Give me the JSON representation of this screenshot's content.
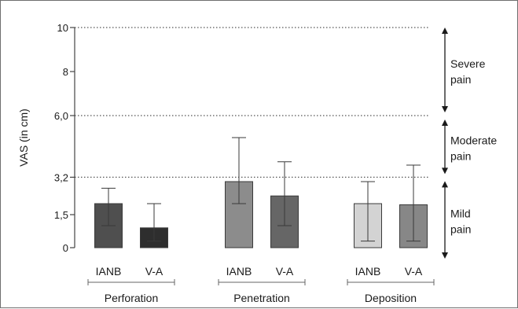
{
  "chart_data": {
    "type": "bar",
    "ylabel": "VAS (in cm)",
    "ylim": [
      0,
      10
    ],
    "grid": "dotted lines at 3.2, 6.0 and 10",
    "legend": "none",
    "yticks": [
      {
        "value": 0,
        "label": "0"
      },
      {
        "value": 1.5,
        "label": "1,5"
      },
      {
        "value": 3.2,
        "label": "3,2"
      },
      {
        "value": 6.0,
        "label": "6,0"
      },
      {
        "value": 8,
        "label": "8"
      },
      {
        "value": 10,
        "label": "10"
      }
    ],
    "thresholds": [
      3.2,
      6.0,
      10
    ],
    "groups": [
      {
        "name": "Perforation",
        "bars": [
          {
            "label": "IANB",
            "value": 2.0,
            "err_low": 1.0,
            "err_high": 2.7,
            "color": "#4f4f4f"
          },
          {
            "label": "V-A",
            "value": 0.9,
            "err_low": 0.3,
            "err_high": 2.0,
            "color": "#2e2e2e"
          }
        ]
      },
      {
        "name": "Penetration",
        "bars": [
          {
            "label": "IANB",
            "value": 3.0,
            "err_low": 2.0,
            "err_high": 5.0,
            "color": "#8c8c8c"
          },
          {
            "label": "V-A",
            "value": 2.35,
            "err_low": 1.0,
            "err_high": 3.9,
            "color": "#666666"
          }
        ]
      },
      {
        "name": "Deposition",
        "bars": [
          {
            "label": "IANB",
            "value": 2.0,
            "err_low": 0.3,
            "err_high": 3.0,
            "color": "#d3d3d3"
          },
          {
            "label": "V-A",
            "value": 1.95,
            "err_low": 0.3,
            "err_high": 3.75,
            "color": "#878787"
          }
        ]
      }
    ],
    "zones": [
      {
        "lines": [
          "Severe",
          "pain"
        ],
        "from": 6.0,
        "to": 10
      },
      {
        "lines": [
          "Moderate",
          "pain"
        ],
        "from": 3.2,
        "to": 6.0
      },
      {
        "lines": [
          "Mild",
          "pain"
        ],
        "from": 0,
        "to": 3.2
      }
    ]
  }
}
